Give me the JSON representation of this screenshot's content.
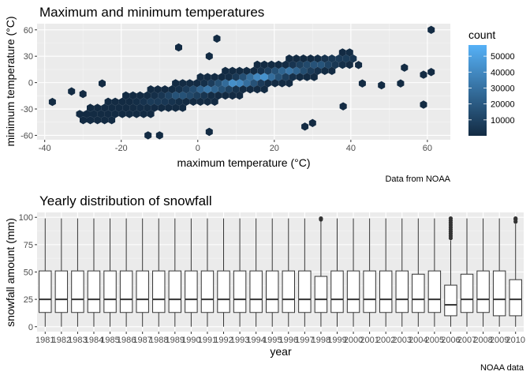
{
  "chart_data": [
    {
      "type": "heatmap",
      "subtype": "hexbin",
      "title": "Maximum and minimum temperatures",
      "xlabel": "maximum temperature (°C)",
      "ylabel": "minimum temperature (°C)",
      "caption": "Data from NOAA",
      "xlim": [
        -42,
        66
      ],
      "ylim": [
        -65,
        67
      ],
      "x_ticks": [
        -40,
        -20,
        0,
        20,
        40,
        60
      ],
      "y_ticks": [
        -60,
        -30,
        0,
        30,
        60
      ],
      "grid": true,
      "legend": {
        "title": "count",
        "position": "right",
        "labels": [
          "50000",
          "40000",
          "30000",
          "20000",
          "10000"
        ],
        "values": [
          50000,
          40000,
          30000,
          20000,
          10000
        ],
        "range": [
          0,
          57000
        ],
        "color_low": "#132B43",
        "color_high": "#56B1F7"
      },
      "cluster": {
        "x_from": -30,
        "x_to": 40,
        "y_from": -38,
        "y_to": 28,
        "band_width": 18,
        "peak_count": 55000
      },
      "outliers": [
        {
          "x": -38,
          "y": -22
        },
        {
          "x": -33,
          "y": -10
        },
        {
          "x": -30,
          "y": -13
        },
        {
          "x": -25,
          "y": -1
        },
        {
          "x": -13,
          "y": -60
        },
        {
          "x": -10,
          "y": -60
        },
        {
          "x": -5,
          "y": 40
        },
        {
          "x": 3,
          "y": -56
        },
        {
          "x": 3,
          "y": 30
        },
        {
          "x": 5,
          "y": 50
        },
        {
          "x": 28,
          "y": -50
        },
        {
          "x": 30,
          "y": -46
        },
        {
          "x": 38,
          "y": -27
        },
        {
          "x": 42,
          "y": 20
        },
        {
          "x": 43,
          "y": -1
        },
        {
          "x": 48,
          "y": -3
        },
        {
          "x": 53,
          "y": -1
        },
        {
          "x": 54,
          "y": 17
        },
        {
          "x": 59,
          "y": -25
        },
        {
          "x": 59,
          "y": 9
        },
        {
          "x": 61,
          "y": 12
        },
        {
          "x": 61,
          "y": 60
        }
      ]
    },
    {
      "type": "box",
      "title": "Yearly distribution of snowfall",
      "xlabel": "year",
      "ylabel": "snowfall amount (mm)",
      "caption": "NOAA data",
      "ylim": [
        0,
        100
      ],
      "y_ticks": [
        0,
        25,
        50,
        75,
        100
      ],
      "grid": true,
      "categories": [
        "1981",
        "1982",
        "1983",
        "1984",
        "1985",
        "1986",
        "1987",
        "1988",
        "1989",
        "1990",
        "1991",
        "1992",
        "1993",
        "1994",
        "1995",
        "1996",
        "1997",
        "1998",
        "1999",
        "2000",
        "2001",
        "2002",
        "2003",
        "2004",
        "2005",
        "2006",
        "2007",
        "2008",
        "2009",
        "2010"
      ],
      "boxes": [
        {
          "min": 0,
          "q1": 13,
          "median": 25,
          "q3": 51,
          "max": 99,
          "outliers": []
        },
        {
          "min": 0,
          "q1": 13,
          "median": 25,
          "q3": 51,
          "max": 99,
          "outliers": []
        },
        {
          "min": 0,
          "q1": 13,
          "median": 25,
          "q3": 51,
          "max": 99,
          "outliers": []
        },
        {
          "min": 0,
          "q1": 13,
          "median": 25,
          "q3": 51,
          "max": 99,
          "outliers": []
        },
        {
          "min": 0,
          "q1": 13,
          "median": 25,
          "q3": 51,
          "max": 99,
          "outliers": []
        },
        {
          "min": 0,
          "q1": 13,
          "median": 25,
          "q3": 51,
          "max": 99,
          "outliers": []
        },
        {
          "min": 0,
          "q1": 13,
          "median": 25,
          "q3": 51,
          "max": 99,
          "outliers": []
        },
        {
          "min": 0,
          "q1": 13,
          "median": 25,
          "q3": 51,
          "max": 99,
          "outliers": []
        },
        {
          "min": 0,
          "q1": 13,
          "median": 25,
          "q3": 51,
          "max": 99,
          "outliers": []
        },
        {
          "min": 0,
          "q1": 13,
          "median": 25,
          "q3": 51,
          "max": 99,
          "outliers": []
        },
        {
          "min": 0,
          "q1": 13,
          "median": 25,
          "q3": 51,
          "max": 99,
          "outliers": []
        },
        {
          "min": 0,
          "q1": 13,
          "median": 25,
          "q3": 51,
          "max": 99,
          "outliers": []
        },
        {
          "min": 0,
          "q1": 13,
          "median": 25,
          "q3": 51,
          "max": 99,
          "outliers": []
        },
        {
          "min": 0,
          "q1": 13,
          "median": 25,
          "q3": 51,
          "max": 99,
          "outliers": []
        },
        {
          "min": 0,
          "q1": 13,
          "median": 25,
          "q3": 51,
          "max": 99,
          "outliers": []
        },
        {
          "min": 0,
          "q1": 13,
          "median": 25,
          "q3": 51,
          "max": 99,
          "outliers": []
        },
        {
          "min": 0,
          "q1": 13,
          "median": 25,
          "q3": 51,
          "max": 99,
          "outliers": []
        },
        {
          "min": 0,
          "q1": 13,
          "median": 25,
          "q3": 46,
          "max": 97,
          "outliers": [
            98,
            99
          ]
        },
        {
          "min": 0,
          "q1": 13,
          "median": 25,
          "q3": 51,
          "max": 99,
          "outliers": []
        },
        {
          "min": 0,
          "q1": 13,
          "median": 25,
          "q3": 51,
          "max": 99,
          "outliers": []
        },
        {
          "min": 0,
          "q1": 13,
          "median": 25,
          "q3": 51,
          "max": 99,
          "outliers": []
        },
        {
          "min": 0,
          "q1": 13,
          "median": 25,
          "q3": 51,
          "max": 99,
          "outliers": []
        },
        {
          "min": 0,
          "q1": 13,
          "median": 25,
          "q3": 51,
          "max": 99,
          "outliers": []
        },
        {
          "min": 0,
          "q1": 13,
          "median": 25,
          "q3": 48,
          "max": 99,
          "outliers": []
        },
        {
          "min": 0,
          "q1": 13,
          "median": 25,
          "q3": 51,
          "max": 99,
          "outliers": []
        },
        {
          "min": 0,
          "q1": 10,
          "median": 20,
          "q3": 38,
          "max": 79,
          "outliers": [
            81,
            83,
            85,
            87,
            89,
            91,
            93,
            95,
            97,
            99
          ]
        },
        {
          "min": 0,
          "q1": 13,
          "median": 25,
          "q3": 48,
          "max": 99,
          "outliers": []
        },
        {
          "min": 0,
          "q1": 13,
          "median": 25,
          "q3": 51,
          "max": 99,
          "outliers": []
        },
        {
          "min": 0,
          "q1": 10,
          "median": 25,
          "q3": 51,
          "max": 99,
          "outliers": []
        },
        {
          "min": 0,
          "q1": 10,
          "median": 25,
          "q3": 43,
          "max": 94,
          "outliers": [
            96,
            98,
            99
          ]
        }
      ]
    }
  ]
}
